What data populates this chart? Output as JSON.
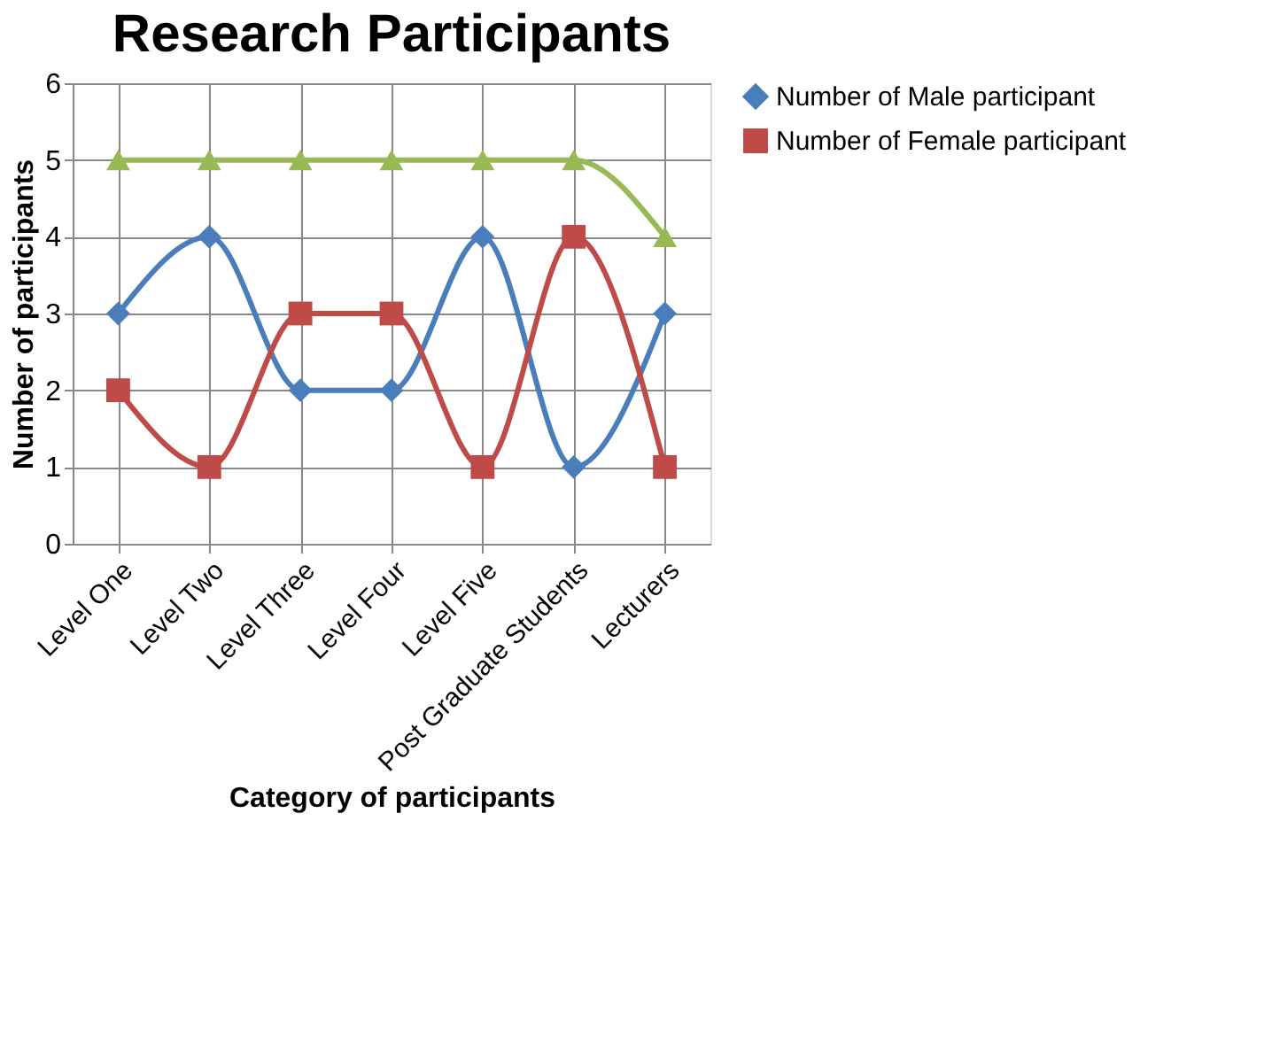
{
  "chart_data": {
    "type": "line",
    "title": "Research Participants",
    "xlabel": "Category of participants",
    "ylabel": "Number of participants",
    "categories": [
      "Level One",
      "Level Two",
      "Level Three",
      "Level Four",
      "Level Five",
      "Post Graduate Students",
      "Lecturers"
    ],
    "series": [
      {
        "name": "Number of Male participant",
        "color": "#4a7ebb",
        "marker": "diamond",
        "values": [
          3,
          4,
          2,
          2,
          4,
          1,
          3
        ]
      },
      {
        "name": "Number of Female participant",
        "color": "#be4b48",
        "marker": "square",
        "values": [
          2,
          1,
          3,
          3,
          1,
          4,
          1
        ]
      },
      {
        "color": "#98b954",
        "marker": "triangle",
        "values": [
          5,
          5,
          5,
          5,
          5,
          5,
          4
        ]
      }
    ],
    "ylim": [
      0,
      6
    ],
    "yticks": [
      0,
      1,
      2,
      3,
      4,
      5,
      6
    ],
    "grid": true,
    "legend": "right",
    "line_style": "solid"
  }
}
